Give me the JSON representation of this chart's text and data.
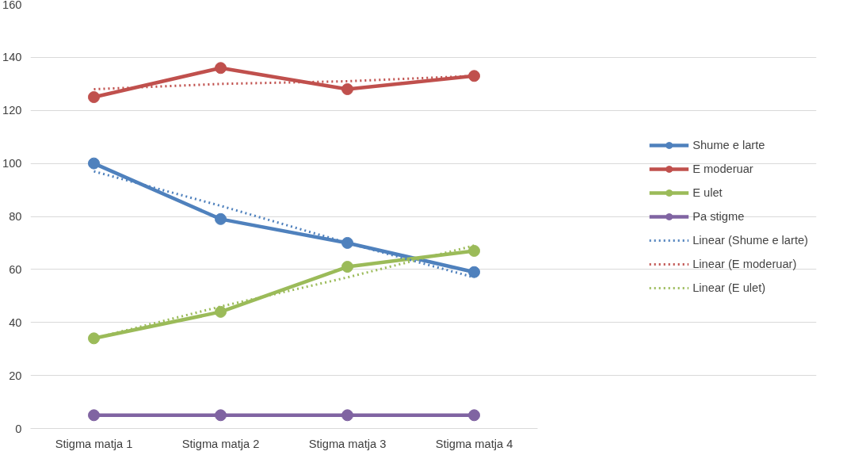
{
  "chart_data": {
    "type": "line",
    "categories": [
      "Stigma matja 1",
      "Stigma matja 2",
      "Stigma matja 3",
      "Stigma matja 4"
    ],
    "ylim": [
      0,
      160
    ],
    "yticks": [
      0,
      20,
      40,
      60,
      80,
      100,
      120,
      140,
      160
    ],
    "grid": "y",
    "legend": "right",
    "marker": "circle",
    "line_style": "solid",
    "series": [
      {
        "name": "Shume e larte",
        "color": "#4f81bd",
        "values": [
          100,
          79,
          70,
          59
        ]
      },
      {
        "name": "E moderuar",
        "color": "#c0504d",
        "values": [
          125,
          136,
          128,
          133
        ]
      },
      {
        "name": "E ulet",
        "color": "#9bbb59",
        "values": [
          34,
          44,
          61,
          67
        ]
      },
      {
        "name": "Pa stigme",
        "color": "#8064a2",
        "values": [
          5,
          5,
          5,
          5
        ]
      },
      {
        "name": "Linear (Shume e larte)",
        "color": "#4f81bd",
        "values": [
          97,
          84,
          70,
          57
        ],
        "marker": "none",
        "line_style": "dotted"
      },
      {
        "name": "Linear (E moderuar)",
        "color": "#c0504d",
        "values": [
          128,
          130,
          131,
          133
        ],
        "marker": "none",
        "line_style": "dotted"
      },
      {
        "name": "Linear (E ulet)",
        "color": "#9bbb59",
        "values": [
          34,
          46,
          57,
          69
        ],
        "marker": "none",
        "line_style": "dotted"
      }
    ]
  }
}
